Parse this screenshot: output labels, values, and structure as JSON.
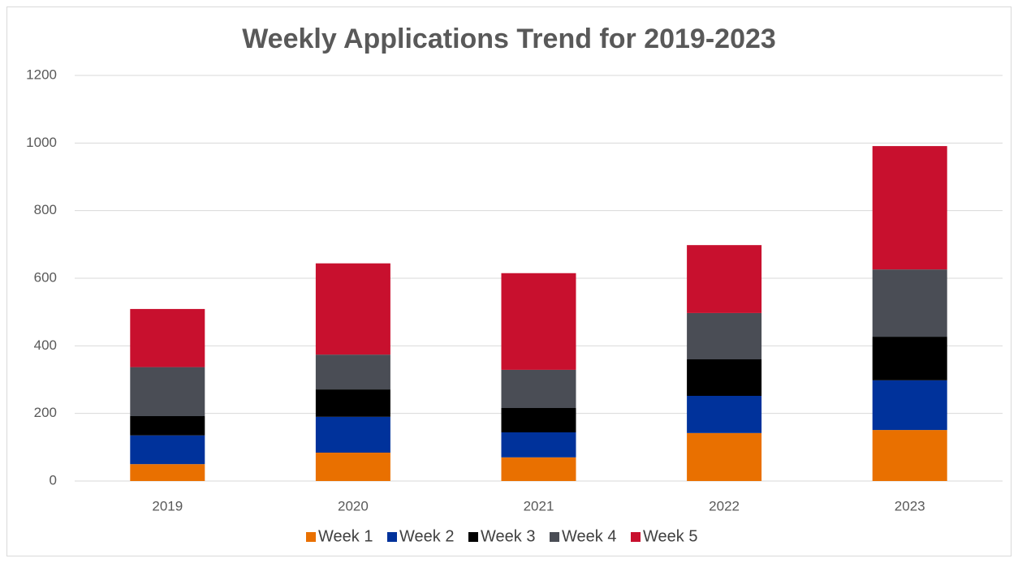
{
  "chart_data": {
    "type": "stacked_bar",
    "title": "Weekly Applications Trend for 2019-2023",
    "categories": [
      "2019",
      "2020",
      "2021",
      "2022",
      "2023"
    ],
    "series": [
      {
        "name": "Week 1",
        "color": "#e97000",
        "values": [
          50,
          84,
          70,
          142,
          151
        ]
      },
      {
        "name": "Week 2",
        "color": "#00329b",
        "values": [
          85,
          106,
          74,
          110,
          147
        ]
      },
      {
        "name": "Week 3",
        "color": "#000000",
        "values": [
          57,
          81,
          72,
          108,
          129
        ]
      },
      {
        "name": "Week 4",
        "color": "#4a4d55",
        "values": [
          145,
          103,
          113,
          137,
          199
        ]
      },
      {
        "name": "Week 5",
        "color": "#c8102e",
        "values": [
          172,
          270,
          286,
          201,
          365
        ]
      }
    ],
    "ylim": [
      0,
      1200
    ],
    "yticks": [
      0,
      200,
      400,
      600,
      800,
      1000,
      1200
    ],
    "grid": true,
    "legend": "bottom"
  }
}
